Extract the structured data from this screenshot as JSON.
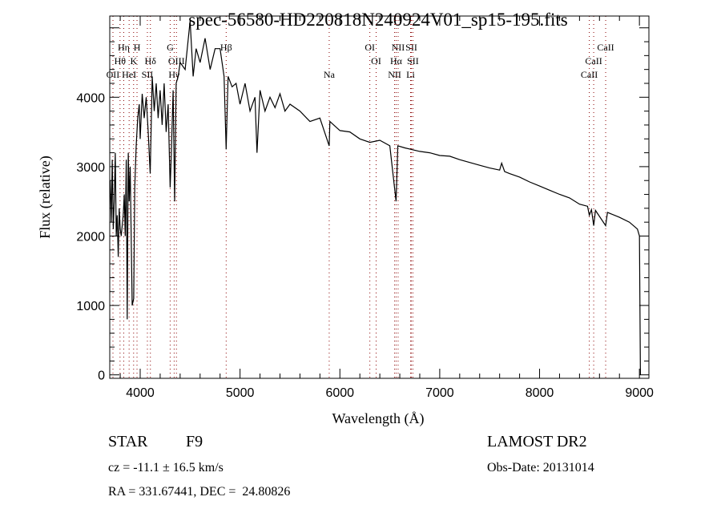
{
  "chart_data": {
    "type": "line",
    "title": "spec-56580-HD220818N240924V01_sp15-195.fits",
    "xlabel": "Wavelength (Å)",
    "ylabel": "Flux (relative)",
    "xlim": [
      3695,
      9095
    ],
    "ylim": [
      -50,
      5170
    ],
    "xticks": [
      4000,
      5000,
      6000,
      7000,
      8000,
      9000
    ],
    "yticks": [
      0,
      1000,
      2000,
      3000,
      4000
    ],
    "grid": false,
    "series": [
      {
        "name": "spectrum",
        "points": [
          [
            3700,
            2800
          ],
          [
            3710,
            2200
          ],
          [
            3720,
            3100
          ],
          [
            3730,
            2100
          ],
          [
            3740,
            2500
          ],
          [
            3750,
            3200
          ],
          [
            3760,
            2000
          ],
          [
            3770,
            2300
          ],
          [
            3780,
            1700
          ],
          [
            3790,
            2400
          ],
          [
            3800,
            2100
          ],
          [
            3810,
            2000
          ],
          [
            3830,
            2300
          ],
          [
            3840,
            2600
          ],
          [
            3850,
            2000
          ],
          [
            3860,
            3100
          ],
          [
            3870,
            800
          ],
          [
            3880,
            3200
          ],
          [
            3890,
            2500
          ],
          [
            3900,
            3000
          ],
          [
            3920,
            1000
          ],
          [
            3935,
            1100
          ],
          [
            3945,
            2700
          ],
          [
            3960,
            3300
          ],
          [
            3975,
            3700
          ],
          [
            3990,
            3900
          ],
          [
            4000,
            3400
          ],
          [
            4020,
            4050
          ],
          [
            4040,
            3700
          ],
          [
            4060,
            4000
          ],
          [
            4080,
            3500
          ],
          [
            4100,
            2900
          ],
          [
            4120,
            4300
          ],
          [
            4140,
            3800
          ],
          [
            4160,
            4200
          ],
          [
            4180,
            3700
          ],
          [
            4200,
            4100
          ],
          [
            4220,
            3600
          ],
          [
            4240,
            4200
          ],
          [
            4260,
            3500
          ],
          [
            4280,
            3900
          ],
          [
            4300,
            2700
          ],
          [
            4310,
            3100
          ],
          [
            4330,
            4100
          ],
          [
            4345,
            2500
          ],
          [
            4360,
            4200
          ],
          [
            4380,
            4300
          ],
          [
            4400,
            4500
          ],
          [
            4450,
            4400
          ],
          [
            4500,
            5100
          ],
          [
            4530,
            4300
          ],
          [
            4560,
            4700
          ],
          [
            4600,
            4500
          ],
          [
            4650,
            4850
          ],
          [
            4700,
            4400
          ],
          [
            4750,
            4700
          ],
          [
            4800,
            4700
          ],
          [
            4840,
            4300
          ],
          [
            4861,
            3250
          ],
          [
            4880,
            4300
          ],
          [
            4920,
            4150
          ],
          [
            4960,
            4200
          ],
          [
            5000,
            3900
          ],
          [
            5050,
            4200
          ],
          [
            5100,
            3800
          ],
          [
            5150,
            4000
          ],
          [
            5170,
            3200
          ],
          [
            5200,
            4100
          ],
          [
            5250,
            3800
          ],
          [
            5300,
            4000
          ],
          [
            5350,
            3850
          ],
          [
            5400,
            4050
          ],
          [
            5450,
            3800
          ],
          [
            5500,
            3900
          ],
          [
            5600,
            3800
          ],
          [
            5700,
            3650
          ],
          [
            5800,
            3700
          ],
          [
            5893,
            3300
          ],
          [
            5900,
            3650
          ],
          [
            6000,
            3520
          ],
          [
            6100,
            3500
          ],
          [
            6200,
            3400
          ],
          [
            6300,
            3350
          ],
          [
            6400,
            3380
          ],
          [
            6500,
            3300
          ],
          [
            6563,
            2500
          ],
          [
            6580,
            3300
          ],
          [
            6650,
            3270
          ],
          [
            6800,
            3220
          ],
          [
            6900,
            3200
          ],
          [
            7000,
            3160
          ],
          [
            7100,
            3150
          ],
          [
            7200,
            3100
          ],
          [
            7300,
            3060
          ],
          [
            7400,
            3020
          ],
          [
            7500,
            2980
          ],
          [
            7600,
            2950
          ],
          [
            7620,
            3050
          ],
          [
            7650,
            2930
          ],
          [
            7700,
            2900
          ],
          [
            7800,
            2850
          ],
          [
            7900,
            2780
          ],
          [
            8000,
            2720
          ],
          [
            8100,
            2660
          ],
          [
            8200,
            2600
          ],
          [
            8300,
            2550
          ],
          [
            8400,
            2460
          ],
          [
            8480,
            2430
          ],
          [
            8498,
            2300
          ],
          [
            8520,
            2380
          ],
          [
            8542,
            2150
          ],
          [
            8560,
            2370
          ],
          [
            8662,
            2150
          ],
          [
            8680,
            2340
          ],
          [
            8800,
            2270
          ],
          [
            8900,
            2200
          ],
          [
            8980,
            2100
          ],
          [
            9000,
            2000
          ],
          [
            9005,
            1000
          ],
          [
            9010,
            0
          ]
        ]
      }
    ],
    "line_markers": [
      {
        "label": "Hη",
        "wave": 3835,
        "row": 1
      },
      {
        "label": "H",
        "wave": 3968,
        "row": 1
      },
      {
        "label": "G",
        "wave": 4300,
        "row": 1
      },
      {
        "label": "Hβ",
        "wave": 4861,
        "row": 1
      },
      {
        "label": "OI",
        "wave": 6300,
        "row": 1
      },
      {
        "label": "NII",
        "wave": 6583,
        "row": 1
      },
      {
        "label": "SII",
        "wave": 6716,
        "row": 1
      },
      {
        "label": "CaII",
        "wave": 8662,
        "row": 1
      },
      {
        "label": "Hθ",
        "wave": 3798,
        "row": 2
      },
      {
        "label": "K",
        "wave": 3934,
        "row": 2
      },
      {
        "label": "Hδ",
        "wave": 4102,
        "row": 2
      },
      {
        "label": "OIII",
        "wave": 4363,
        "row": 2
      },
      {
        "label": "OI",
        "wave": 6363,
        "row": 2
      },
      {
        "label": "Hα",
        "wave": 6563,
        "row": 2
      },
      {
        "label": "SII",
        "wave": 6731,
        "row": 2
      },
      {
        "label": "CaII",
        "wave": 8542,
        "row": 2
      },
      {
        "label": "OII",
        "wave": 3727,
        "row": 3
      },
      {
        "label": "HeI",
        "wave": 3889,
        "row": 3
      },
      {
        "label": "SII",
        "wave": 4072,
        "row": 3
      },
      {
        "label": "Hγ",
        "wave": 4340,
        "row": 3
      },
      {
        "label": "Na",
        "wave": 5893,
        "row": 3
      },
      {
        "label": "NII",
        "wave": 6548,
        "row": 3
      },
      {
        "label": "Li",
        "wave": 6708,
        "row": 3
      },
      {
        "label": "CaII",
        "wave": 8498,
        "row": 3
      }
    ],
    "marker_color": "#8b0000",
    "line_color": "#000000"
  },
  "info": {
    "object_type": "STAR",
    "subclass": "F9",
    "survey": "LAMOST DR2",
    "redshift": "cz = -11.1 ± 16.5 km/s",
    "obs_date": "Obs-Date: 20131014",
    "coords": "RA = 331.67441, DEC =  24.80826"
  }
}
